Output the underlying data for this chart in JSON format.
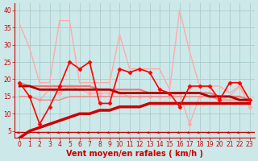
{
  "xlabel": "Vent moyen/en rafales ( km/h )",
  "background_color": "#cce8e8",
  "grid_color": "#aacccc",
  "x_ticks": [
    0,
    1,
    2,
    3,
    4,
    5,
    6,
    7,
    8,
    9,
    10,
    11,
    12,
    13,
    14,
    15,
    16,
    17,
    18,
    19,
    20,
    21,
    22,
    23
  ],
  "ylim": [
    3,
    42
  ],
  "yticks": [
    5,
    10,
    15,
    20,
    25,
    30,
    35,
    40
  ],
  "series": [
    {
      "y": [
        36,
        29,
        19,
        19,
        37,
        37,
        19,
        19,
        19,
        19,
        33,
        23,
        23,
        23,
        23,
        17,
        40,
        28,
        18,
        18,
        18,
        16,
        18,
        14
      ],
      "color": "#ffaaaa",
      "lw": 1.0,
      "marker": null,
      "zorder": 2
    },
    {
      "y": [
        19,
        15,
        14,
        17,
        16,
        18,
        17,
        16,
        16,
        16,
        16,
        15,
        15,
        15,
        15,
        15,
        16,
        7,
        15,
        15,
        14,
        15,
        18,
        12
      ],
      "color": "#ffaaaa",
      "lw": 1.0,
      "marker": "D",
      "markersize": 2.5,
      "zorder": 2
    },
    {
      "y": [
        19,
        18,
        18,
        18,
        18,
        18,
        18,
        18,
        17,
        17,
        17,
        17,
        17,
        16,
        16,
        16,
        16,
        16,
        16,
        16,
        15,
        15,
        15,
        14
      ],
      "color": "#ee7777",
      "lw": 1.5,
      "marker": null,
      "zorder": 3
    },
    {
      "y": [
        15,
        15,
        14,
        14,
        14,
        15,
        15,
        15,
        15,
        15,
        15,
        15,
        15,
        15,
        15,
        15,
        15,
        15,
        15,
        15,
        14,
        14,
        14,
        14
      ],
      "color": "#ee8888",
      "lw": 1.0,
      "marker": null,
      "zorder": 2
    },
    {
      "y": [
        19,
        15,
        7,
        12,
        18,
        25,
        23,
        25,
        13,
        13,
        23,
        22,
        23,
        22,
        17,
        16,
        12,
        18,
        18,
        18,
        14,
        19,
        19,
        14
      ],
      "color": "#ff0000",
      "lw": 1.2,
      "marker": "D",
      "markersize": 2.5,
      "zorder": 5
    },
    {
      "y": [
        3,
        5,
        6,
        7,
        8,
        9,
        10,
        10,
        11,
        11,
        12,
        12,
        12,
        13,
        13,
        13,
        13,
        13,
        13,
        13,
        13,
        13,
        13,
        13
      ],
      "color": "#cc0000",
      "lw": 2.5,
      "marker": null,
      "zorder": 4
    },
    {
      "y": [
        18,
        18,
        17,
        17,
        17,
        17,
        17,
        17,
        17,
        17,
        16,
        16,
        16,
        16,
        16,
        16,
        16,
        16,
        16,
        15,
        15,
        15,
        14,
        14
      ],
      "color": "#aa0000",
      "lw": 2.0,
      "marker": null,
      "zorder": 3
    }
  ],
  "xlabel_color": "#cc0000",
  "xlabel_fontsize": 7,
  "tick_color": "#cc0000",
  "tick_fontsize": 5.5
}
